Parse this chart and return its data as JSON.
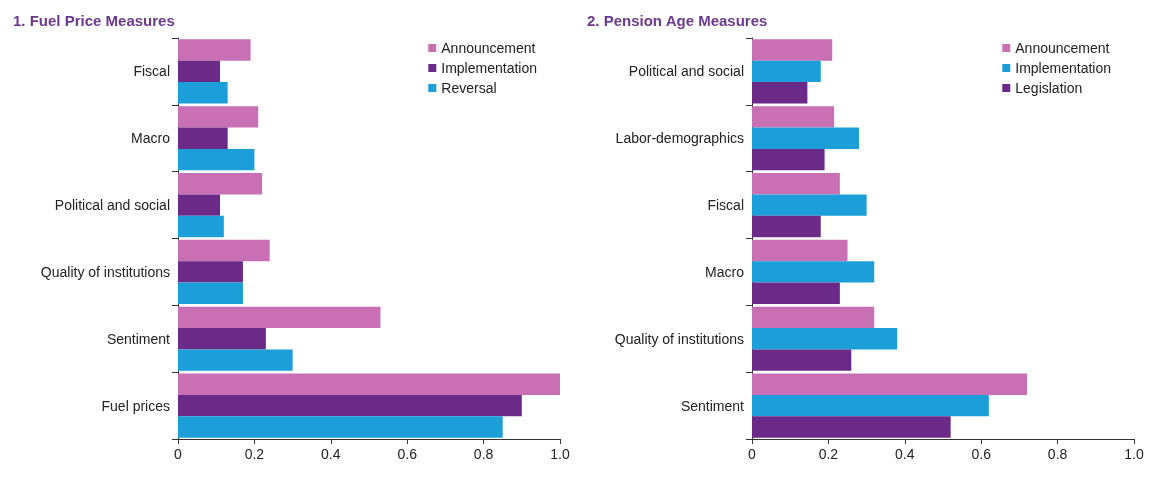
{
  "chart_data": [
    {
      "type": "bar",
      "orientation": "horizontal",
      "title": "1. Fuel Price Measures",
      "categories": [
        "Fiscal",
        "Macro",
        "Political and social",
        "Quality of institutions",
        "Sentiment",
        "Fuel prices"
      ],
      "series": [
        {
          "name": "Announcement",
          "color": "#c96fb4",
          "values": [
            0.19,
            0.21,
            0.22,
            0.24,
            0.53,
            1.0
          ]
        },
        {
          "name": "Implementation",
          "color": "#6b2a87",
          "values": [
            0.11,
            0.13,
            0.11,
            0.17,
            0.23,
            0.9
          ]
        },
        {
          "name": "Reversal",
          "color": "#1c9fd8",
          "values": [
            0.13,
            0.2,
            0.12,
            0.17,
            0.3,
            0.85
          ]
        }
      ],
      "xlim": [
        0,
        1.0
      ],
      "xticks": [
        0,
        0.2,
        0.4,
        0.6,
        0.8,
        {
          "value": 1,
          "label": "1.0"
        }
      ],
      "grid": false,
      "legend": "top right"
    },
    {
      "type": "bar",
      "orientation": "horizontal",
      "title": "2. Pension Age Measures",
      "categories": [
        "Political and social",
        "Labor-demographics",
        "Fiscal",
        "Macro",
        "Quality of institutions",
        "Sentiment"
      ],
      "series": [
        {
          "name": "Announcement",
          "color": "#c96fb4",
          "values": [
            0.21,
            0.215,
            0.23,
            0.25,
            0.32,
            0.72
          ]
        },
        {
          "name": "Implementation",
          "color": "#1c9fd8",
          "values": [
            0.18,
            0.28,
            0.3,
            0.32,
            0.38,
            0.62
          ]
        },
        {
          "name": "Legislation",
          "color": "#6b2a87",
          "values": [
            0.145,
            0.19,
            0.18,
            0.23,
            0.26,
            0.52
          ]
        }
      ],
      "xlim": [
        0,
        1.0
      ],
      "xticks": [
        0,
        0.2,
        0.4,
        0.6,
        0.8,
        {
          "value": 1,
          "label": "1.0"
        }
      ],
      "grid": false,
      "legend": "top right"
    }
  ]
}
